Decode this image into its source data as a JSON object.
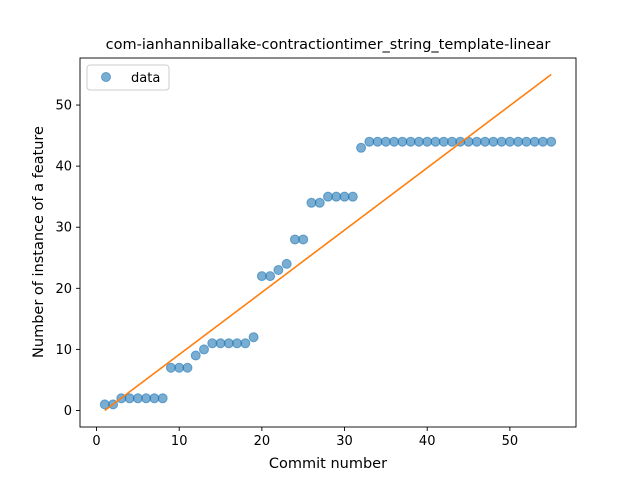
{
  "chart_data": {
    "type": "scatter",
    "title": "com-ianhanniballake-contractiontimer_string_template-linear",
    "xlabel": "Commit number",
    "ylabel": "Number of instance of a feature",
    "xlim": [
      -2,
      58
    ],
    "ylim": [
      -2.7,
      57.7
    ],
    "xticks": [
      0,
      10,
      20,
      30,
      40,
      50
    ],
    "yticks": [
      0,
      10,
      20,
      30,
      40,
      50
    ],
    "grid": false,
    "legend": {
      "placement": "top-left",
      "entries": [
        "data"
      ]
    },
    "series": [
      {
        "name": "data",
        "kind": "points",
        "color": "#1f77b4",
        "x": [
          1,
          2,
          3,
          4,
          5,
          6,
          7,
          8,
          9,
          10,
          11,
          12,
          13,
          14,
          15,
          16,
          17,
          18,
          19,
          20,
          21,
          22,
          23,
          24,
          25,
          26,
          27,
          28,
          29,
          30,
          31,
          32,
          33,
          34,
          35,
          36,
          37,
          38,
          39,
          40,
          41,
          42,
          43,
          44,
          45,
          46,
          47,
          48,
          49,
          50,
          51,
          52,
          53,
          54,
          55
        ],
        "y": [
          1,
          1,
          2,
          2,
          2,
          2,
          2,
          2,
          7,
          7,
          7,
          9,
          10,
          11,
          11,
          11,
          11,
          11,
          12,
          22,
          22,
          23,
          24,
          28,
          28,
          34,
          34,
          35,
          35,
          35,
          35,
          43,
          44,
          44,
          44,
          44,
          44,
          44,
          44,
          44,
          44,
          44,
          44,
          44,
          44,
          44,
          44,
          44,
          44,
          44,
          44,
          44,
          44,
          44,
          44
        ]
      },
      {
        "kind": "line",
        "color": "#ff7f0e",
        "x": [
          1,
          55
        ],
        "y": [
          0,
          55
        ]
      }
    ]
  }
}
